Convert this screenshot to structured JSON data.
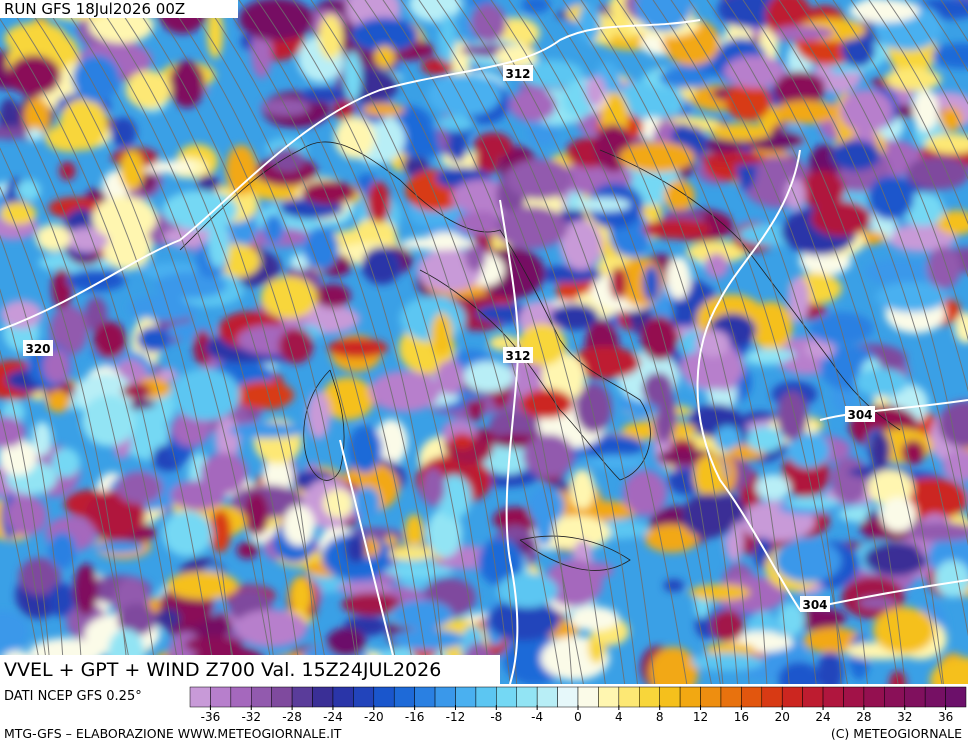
{
  "header": {
    "run": "RUN GFS 18Jul2026 00Z"
  },
  "map": {
    "contour_labels": [
      312,
      320,
      312,
      304,
      304
    ]
  },
  "footer": {
    "title": "VVEL + GPT + WIND Z700 Val. 15Z24JUL2026",
    "source": "DATI NCEP GFS 0.25°",
    "credits": "MTG-GFS – ELABORAZIONE WWW.METEOGIORNALE.IT",
    "copyright": "(C) METEOGIORNALE"
  },
  "colorbar": {
    "vlim": [
      -38,
      38
    ],
    "ticks": [
      -36,
      -32,
      -28,
      -24,
      -20,
      -16,
      -12,
      -8,
      -4,
      0,
      4,
      8,
      12,
      16,
      20,
      24,
      28,
      32,
      36
    ],
    "colors": [
      "#c89ad8",
      "#b77fcc",
      "#a568bd",
      "#925aae",
      "#7f4a9e",
      "#5a3c9a",
      "#3a2f96",
      "#2a35a8",
      "#2244bb",
      "#1a56cc",
      "#1e6ad8",
      "#2a80e2",
      "#3a98ea",
      "#4ab0f0",
      "#5cc6f2",
      "#74d8f4",
      "#92e4f4",
      "#b8eef6",
      "#e6f8fa",
      "#fbfbe8",
      "#fff6b0",
      "#fde874",
      "#f8d63a",
      "#f5c01c",
      "#f2a812",
      "#ee8e10",
      "#e8720e",
      "#e2560e",
      "#d83a14",
      "#cc2620",
      "#be1c30",
      "#b0163e",
      "#a21248",
      "#941050",
      "#8a1058",
      "#80105e",
      "#761064",
      "#6c106a"
    ]
  }
}
